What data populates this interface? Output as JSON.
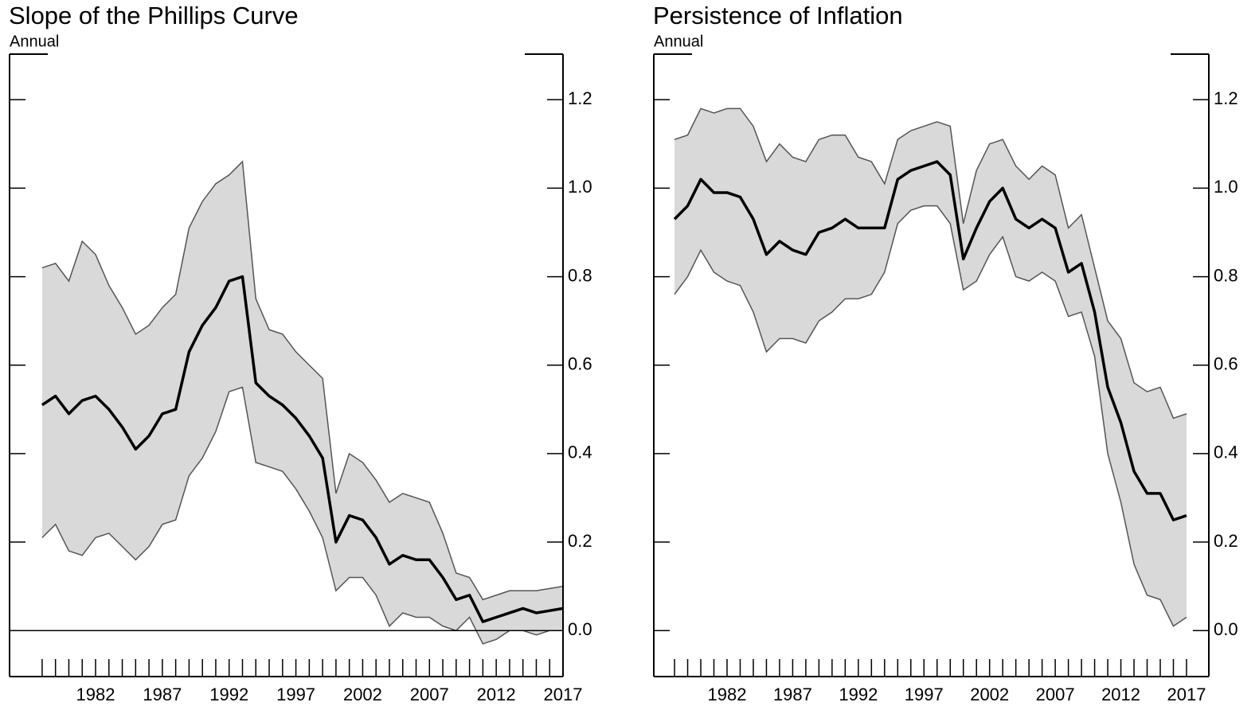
{
  "chart_data": [
    {
      "type": "line",
      "title": "Slope of the Phillips Curve",
      "subtitle": "Annual",
      "x": [
        1978,
        1979,
        1980,
        1981,
        1982,
        1983,
        1984,
        1985,
        1986,
        1987,
        1988,
        1989,
        1990,
        1991,
        1992,
        1993,
        1994,
        1995,
        1996,
        1997,
        1998,
        1999,
        2000,
        2001,
        2002,
        2003,
        2004,
        2005,
        2006,
        2007,
        2008,
        2009,
        2010,
        2011,
        2012,
        2013,
        2014,
        2015,
        2016,
        2017
      ],
      "values": [
        0.51,
        0.53,
        0.49,
        0.52,
        0.53,
        0.5,
        0.46,
        0.41,
        0.44,
        0.49,
        0.5,
        0.63,
        0.69,
        0.73,
        0.79,
        0.8,
        0.56,
        0.53,
        0.51,
        0.48,
        0.44,
        0.39,
        0.2,
        0.26,
        0.25,
        0.21,
        0.15,
        0.17,
        0.16,
        0.16,
        0.12,
        0.07,
        0.08,
        0.02,
        0.03,
        0.04,
        0.05,
        0.04,
        0.045,
        0.05
      ],
      "upper": [
        0.82,
        0.83,
        0.79,
        0.88,
        0.85,
        0.78,
        0.73,
        0.67,
        0.69,
        0.73,
        0.76,
        0.91,
        0.97,
        1.01,
        1.03,
        1.06,
        0.75,
        0.68,
        0.67,
        0.63,
        0.6,
        0.57,
        0.31,
        0.4,
        0.38,
        0.34,
        0.29,
        0.31,
        0.3,
        0.29,
        0.22,
        0.13,
        0.12,
        0.07,
        0.08,
        0.09,
        0.09,
        0.09,
        0.095,
        0.1
      ],
      "lower": [
        0.21,
        0.24,
        0.18,
        0.17,
        0.21,
        0.22,
        0.19,
        0.16,
        0.19,
        0.24,
        0.25,
        0.35,
        0.39,
        0.45,
        0.54,
        0.55,
        0.38,
        0.37,
        0.36,
        0.32,
        0.27,
        0.21,
        0.09,
        0.12,
        0.12,
        0.08,
        0.01,
        0.04,
        0.03,
        0.03,
        0.01,
        0.0,
        0.03,
        -0.03,
        -0.02,
        0.0,
        0.0,
        -0.01,
        0.0,
        0.0
      ],
      "color": "#000000",
      "band_color": "#d9d9d9",
      "xlim": [
        1975.56,
        2017
      ],
      "xticks": [
        1982,
        1987,
        1992,
        1997,
        2002,
        2007,
        2012,
        2017
      ],
      "ylim": [
        -0.104,
        1.303
      ],
      "yticks": [
        {
          "value": 0,
          "label": "0.0"
        },
        {
          "value": 0.2,
          "label": "0.2"
        },
        {
          "value": 0.4,
          "label": "0.4"
        },
        {
          "value": 0.6,
          "label": "0.6"
        },
        {
          "value": 0.8,
          "label": "0.8"
        },
        {
          "value": 1.0,
          "label": "1.0"
        },
        {
          "value": 1.2,
          "label": "1.2"
        }
      ],
      "hline": 0
    },
    {
      "type": "line",
      "title": "Persistence of Inflation",
      "subtitle": "Annual",
      "x": [
        1978,
        1979,
        1980,
        1981,
        1982,
        1983,
        1984,
        1985,
        1986,
        1987,
        1988,
        1989,
        1990,
        1991,
        1992,
        1993,
        1994,
        1995,
        1996,
        1997,
        1998,
        1999,
        2000,
        2001,
        2002,
        2003,
        2004,
        2005,
        2006,
        2007,
        2008,
        2009,
        2010,
        2011,
        2012,
        2013,
        2014,
        2015,
        2016,
        2017
      ],
      "values": [
        0.93,
        0.96,
        1.02,
        0.99,
        0.99,
        0.98,
        0.93,
        0.85,
        0.88,
        0.86,
        0.85,
        0.9,
        0.91,
        0.93,
        0.91,
        0.91,
        0.91,
        1.02,
        1.04,
        1.05,
        1.06,
        1.03,
        0.84,
        0.91,
        0.97,
        1.0,
        0.93,
        0.91,
        0.93,
        0.91,
        0.81,
        0.83,
        0.72,
        0.55,
        0.47,
        0.36,
        0.31,
        0.31,
        0.25,
        0.26
      ],
      "upper": [
        1.11,
        1.12,
        1.18,
        1.17,
        1.18,
        1.18,
        1.14,
        1.06,
        1.1,
        1.07,
        1.06,
        1.11,
        1.12,
        1.12,
        1.07,
        1.06,
        1.01,
        1.11,
        1.13,
        1.14,
        1.15,
        1.14,
        0.92,
        1.04,
        1.1,
        1.11,
        1.05,
        1.02,
        1.05,
        1.03,
        0.91,
        0.94,
        0.82,
        0.7,
        0.66,
        0.56,
        0.54,
        0.55,
        0.48,
        0.49
      ],
      "lower": [
        0.76,
        0.8,
        0.86,
        0.81,
        0.79,
        0.78,
        0.72,
        0.63,
        0.66,
        0.66,
        0.65,
        0.7,
        0.72,
        0.75,
        0.75,
        0.76,
        0.81,
        0.92,
        0.95,
        0.96,
        0.96,
        0.92,
        0.77,
        0.79,
        0.85,
        0.89,
        0.8,
        0.79,
        0.81,
        0.79,
        0.71,
        0.72,
        0.62,
        0.4,
        0.29,
        0.15,
        0.08,
        0.07,
        0.01,
        0.03
      ],
      "color": "#000000",
      "band_color": "#d9d9d9",
      "xlim": [
        1976.42,
        2018.7
      ],
      "xticks": [
        1982,
        1987,
        1992,
        1997,
        2002,
        2007,
        2012,
        2017
      ],
      "ylim": [
        -0.104,
        1.303
      ],
      "yticks": [
        {
          "value": 0,
          "label": "0.0"
        },
        {
          "value": 0.2,
          "label": "0.2"
        },
        {
          "value": 0.4,
          "label": "0.4"
        },
        {
          "value": 0.6,
          "label": "0.6"
        },
        {
          "value": 0.8,
          "label": "0.8"
        },
        {
          "value": 1.0,
          "label": "1.0"
        },
        {
          "value": 1.2,
          "label": "1.2"
        }
      ]
    }
  ]
}
